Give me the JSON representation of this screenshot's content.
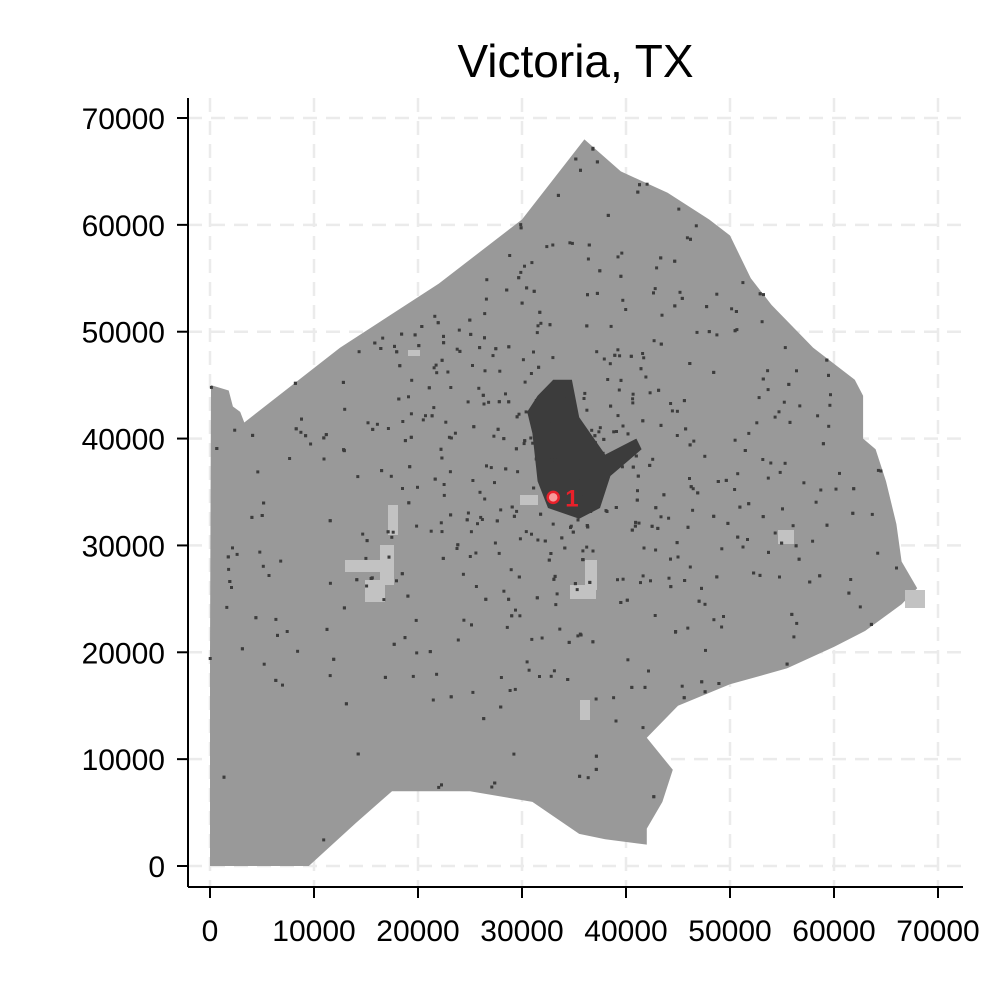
{
  "figure": {
    "title": "Victoria, TX"
  },
  "chart_data": {
    "type": "scatter",
    "title": "Victoria, TX",
    "xlabel": "",
    "ylabel": "",
    "xlim": [
      -2000,
      72000
    ],
    "ylim": [
      -2000,
      72000
    ],
    "xticks": [
      0,
      10000,
      20000,
      30000,
      40000,
      50000,
      60000,
      70000
    ],
    "yticks": [
      0,
      10000,
      20000,
      30000,
      40000,
      50000,
      60000,
      70000
    ],
    "x_tick_labels": [
      "0",
      "10000",
      "20000",
      "30000",
      "40000",
      "50000",
      "60000",
      "70000"
    ],
    "y_tick_labels": [
      "0",
      "10000",
      "20000",
      "30000",
      "40000",
      "50000",
      "60000",
      "70000"
    ],
    "grid": true,
    "colors": {
      "county": "#999999",
      "developed": "#3c3c3c",
      "light_patches": "#c2c2c2",
      "grid": "#ebebeb",
      "marker": "#e8202a",
      "marker_fill": "#f79a9a"
    },
    "county_boundary": [
      [
        100,
        45000
      ],
      [
        1800,
        44500
      ],
      [
        2200,
        43000
      ],
      [
        2900,
        42500
      ],
      [
        3300,
        41500
      ],
      [
        12500,
        48500
      ],
      [
        22000,
        54500
      ],
      [
        30000,
        60500
      ],
      [
        36000,
        68000
      ],
      [
        39500,
        65000
      ],
      [
        44000,
        63000
      ],
      [
        48000,
        60500
      ],
      [
        50000,
        59000
      ],
      [
        52000,
        55000
      ],
      [
        54000,
        52500
      ],
      [
        58000,
        48500
      ],
      [
        62000,
        45500
      ],
      [
        62800,
        44000
      ],
      [
        62800,
        40000
      ],
      [
        64000,
        39000
      ],
      [
        65000,
        36000
      ],
      [
        66000,
        32000
      ],
      [
        66500,
        28500
      ],
      [
        68000,
        26000
      ],
      [
        66500,
        24500
      ],
      [
        63000,
        22000
      ],
      [
        60000,
        20500
      ],
      [
        55500,
        18500
      ],
      [
        50000,
        17000
      ],
      [
        45000,
        15000
      ],
      [
        42000,
        12000
      ],
      [
        44500,
        9000
      ],
      [
        43500,
        6000
      ],
      [
        42000,
        3500
      ],
      [
        42000,
        2000
      ],
      [
        38000,
        2500
      ],
      [
        35500,
        3000
      ],
      [
        31000,
        6000
      ],
      [
        25000,
        7000
      ],
      [
        17500,
        7000
      ],
      [
        14000,
        4000
      ],
      [
        9500,
        0
      ],
      [
        0,
        0
      ],
      [
        0,
        20000
      ]
    ],
    "urban_core": [
      [
        31500,
        44000
      ],
      [
        33000,
        45500
      ],
      [
        34800,
        45500
      ],
      [
        35500,
        42000
      ],
      [
        38000,
        38500
      ],
      [
        41000,
        40000
      ],
      [
        41500,
        39000
      ],
      [
        38500,
        36500
      ],
      [
        37500,
        33500
      ],
      [
        35500,
        32500
      ],
      [
        32500,
        33500
      ],
      [
        31500,
        36000
      ],
      [
        31000,
        40500
      ],
      [
        30500,
        42500
      ]
    ],
    "marker": {
      "label": "1",
      "x": 33000,
      "y": 34500
    }
  }
}
